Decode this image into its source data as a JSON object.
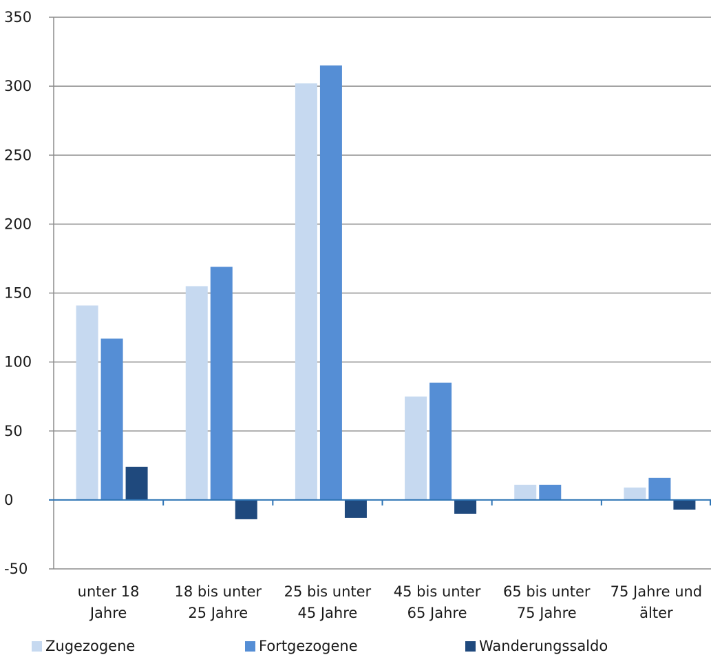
{
  "chart_data": {
    "type": "bar",
    "categories": [
      [
        "unter 18",
        "Jahre"
      ],
      [
        "18 bis unter",
        "25 Jahre"
      ],
      [
        "25 bis unter",
        "45 Jahre"
      ],
      [
        "45 bis unter",
        "65 Jahre"
      ],
      [
        "65 bis unter",
        "75 Jahre"
      ],
      [
        "75 Jahre und",
        "älter"
      ]
    ],
    "series": [
      {
        "name": "Zugezogene",
        "color": "#c6d9f0",
        "values": [
          141,
          155,
          302,
          75,
          11,
          9
        ]
      },
      {
        "name": "Fortgezogene",
        "color": "#558ed5",
        "values": [
          117,
          169,
          315,
          85,
          11,
          16
        ]
      },
      {
        "name": "Wanderungssaldo",
        "color": "#1f497d",
        "values": [
          24,
          -14,
          -13,
          -10,
          0,
          -7
        ]
      }
    ],
    "ylim": [
      -50,
      350
    ],
    "yticks": [
      -50,
      0,
      50,
      100,
      150,
      200,
      250,
      300,
      350
    ],
    "grid": true,
    "legend_position": "bottom",
    "axis_color": "#2e74b5",
    "grid_color": "#8c8c8c"
  }
}
